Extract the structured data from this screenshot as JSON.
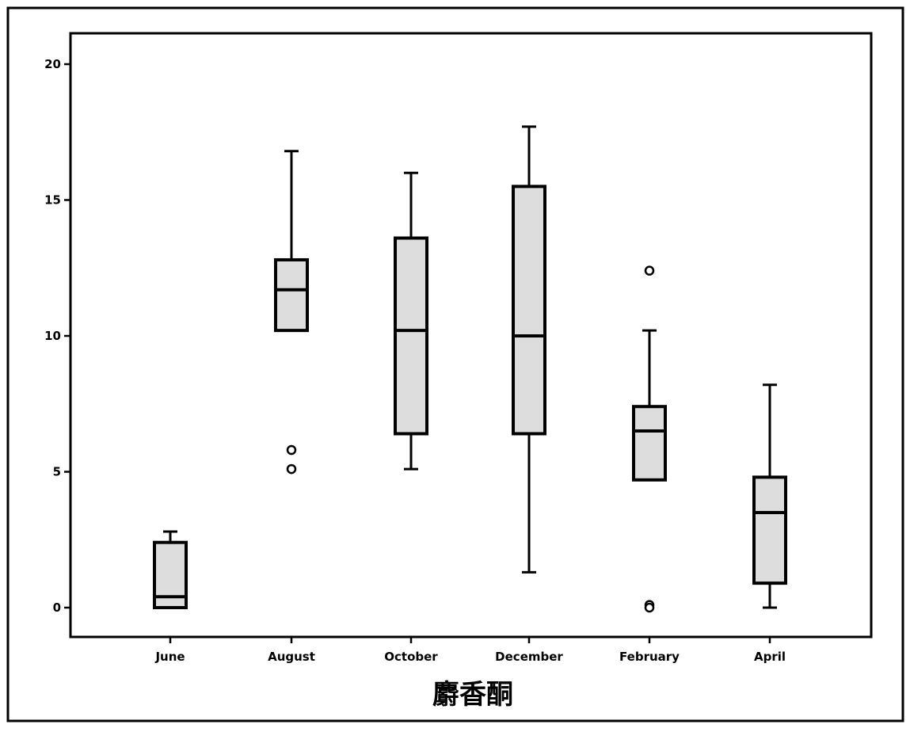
{
  "chart_data": {
    "type": "boxplot",
    "title": "",
    "xlabel": "麝香酮",
    "ylabel": "",
    "ylim": [
      -1,
      21
    ],
    "yticks": [
      0,
      5,
      10,
      15,
      20
    ],
    "ytick_labels": [
      "0",
      "5",
      "10",
      "15",
      "20"
    ],
    "grid": false,
    "legend": false,
    "categories": [
      "June",
      "August",
      "October",
      "December",
      "February",
      "April"
    ],
    "boxes": [
      {
        "category": "June",
        "whisker_low": 0.0,
        "q1": 0.0,
        "median": 0.4,
        "q3": 2.4,
        "whisker_high": 2.8,
        "outliers": []
      },
      {
        "category": "August",
        "whisker_low": 10.2,
        "q1": 10.2,
        "median": 11.7,
        "q3": 12.8,
        "whisker_high": 16.8,
        "outliers": [
          5.8,
          5.1
        ]
      },
      {
        "category": "October",
        "whisker_low": 5.1,
        "q1": 6.4,
        "median": 10.2,
        "q3": 13.6,
        "whisker_high": 16.0,
        "outliers": []
      },
      {
        "category": "December",
        "whisker_low": 1.3,
        "q1": 6.4,
        "median": 10.0,
        "q3": 15.5,
        "whisker_high": 17.7,
        "outliers": []
      },
      {
        "category": "February",
        "whisker_low": 4.7,
        "q1": 4.7,
        "median": 6.5,
        "q3": 7.4,
        "whisker_high": 10.2,
        "outliers": [
          12.4,
          0.1,
          0.0
        ]
      },
      {
        "category": "April",
        "whisker_low": 0.0,
        "q1": 0.9,
        "median": 3.5,
        "q3": 4.8,
        "whisker_high": 8.2,
        "outliers": []
      }
    ],
    "box_fill": "#dddddd",
    "line_color": "#000000"
  }
}
